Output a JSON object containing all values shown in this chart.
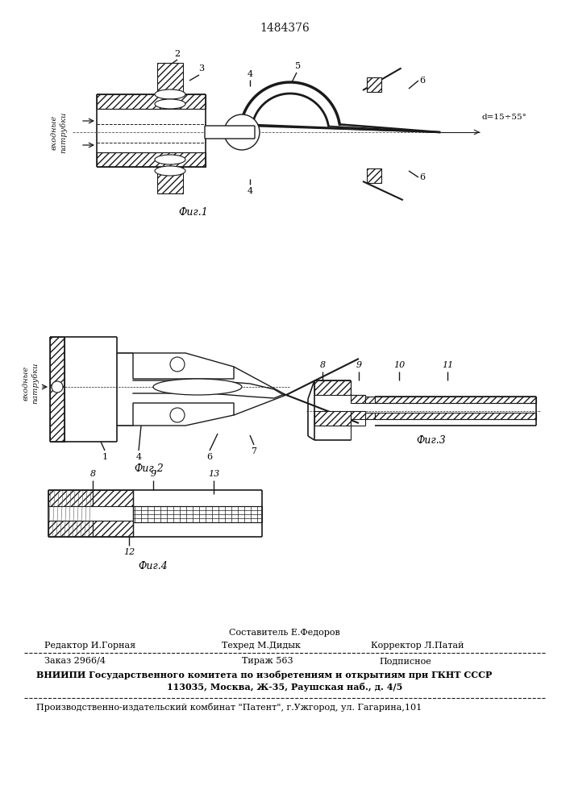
{
  "patent_number": "1484376",
  "fig1_caption": "Фиг.1",
  "fig2_caption": "Фиг.2",
  "fig3_caption": "Фиг.3",
  "fig4_caption": "Фиг.4",
  "label_vhodnye": "входные\nпатрубки",
  "label_vhodnye_italic": "входные\nпатрубки",
  "angle_label": "d=15÷55°",
  "sostavitel": "Составитель Е.Федоров",
  "redaktor": "Редактор И.Горная",
  "tehred": "Техред М.Дидык",
  "korrektor": "Корректор Л.Патай",
  "zakaz": "Заказ 2966/4",
  "tirazh": "Тираж 563",
  "podpisnoe": "Подписное",
  "vniipи_line1": "ВНИИПИ Государственного комитета по изобретениям и открытиям при ГКНТ СССР",
  "vniipи_line2": "113035, Москва, Ж-35, Раушская наб., д. 4/5",
  "proizv": "Производственно-издательский комбинат \"Патент\", г.Ужгород, ул. Гагарина,101",
  "bg_color": "#ffffff",
  "line_color": "#1a1a1a"
}
